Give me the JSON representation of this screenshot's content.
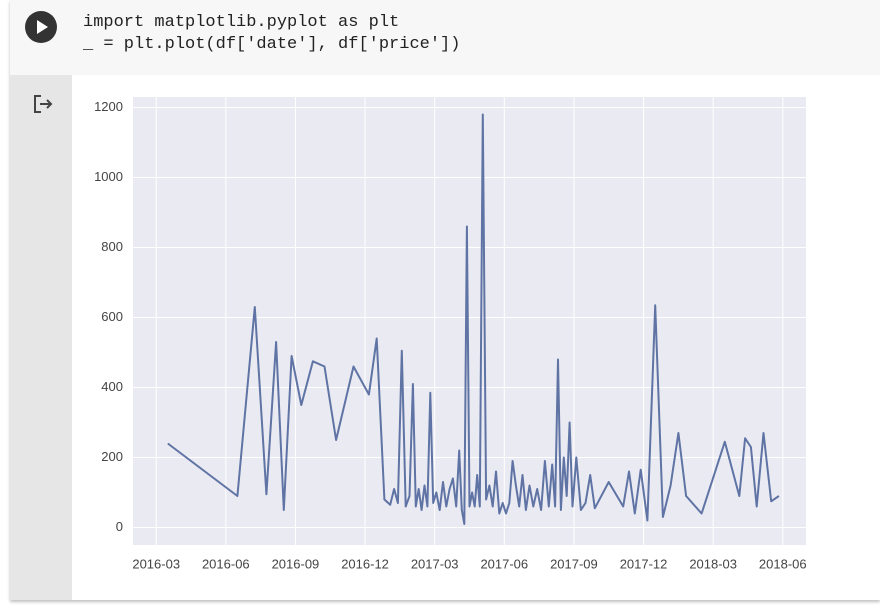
{
  "code": {
    "lines": [
      "import matplotlib.pyplot as plt",
      "_ = plt.plot(df['date'], df['price'])"
    ]
  },
  "chart_data": {
    "type": "line",
    "color": "#5f74a4",
    "grid": true,
    "x": [
      "2016-03",
      "2016-06",
      "2016-07",
      "2016-07",
      "2016-08",
      "2016-08",
      "2016-08",
      "2016-09",
      "2016-09",
      "2016-10",
      "2016-10",
      "2016-11",
      "2016-12",
      "2016-12",
      "2016-12",
      "2017-01",
      "2017-01",
      "2017-01",
      "2017-01",
      "2017-01",
      "2017-01",
      "2017-02",
      "2017-02",
      "2017-02",
      "2017-02",
      "2017-02",
      "2017-02",
      "2017-02",
      "2017-02",
      "2017-03",
      "2017-03",
      "2017-03",
      "2017-03",
      "2017-03",
      "2017-03",
      "2017-03",
      "2017-04",
      "2017-04",
      "2017-04",
      "2017-04",
      "2017-04",
      "2017-04",
      "2017-04",
      "2017-04",
      "2017-04",
      "2017-05",
      "2017-05",
      "2017-05",
      "2017-05",
      "2017-05",
      "2017-05",
      "2017-05",
      "2017-06",
      "2017-06",
      "2017-06",
      "2017-06",
      "2017-06",
      "2017-06",
      "2017-06",
      "2017-07",
      "2017-07",
      "2017-07",
      "2017-07",
      "2017-07",
      "2017-07",
      "2017-08",
      "2017-08",
      "2017-08",
      "2017-08",
      "2017-08",
      "2017-08",
      "2017-08",
      "2017-08",
      "2017-09",
      "2017-09",
      "2017-09",
      "2017-09",
      "2017-09",
      "2017-10",
      "2017-11",
      "2017-11",
      "2017-11",
      "2017-11",
      "2017-12",
      "2017-12",
      "2017-12",
      "2018-01",
      "2018-01",
      "2018-01",
      "2018-02",
      "2018-03",
      "2018-04",
      "2018-04",
      "2018-04",
      "2018-04",
      "2018-05",
      "2018-05",
      "2018-05"
    ],
    "values": [
      240,
      90,
      630,
      95,
      530,
      50,
      490,
      350,
      475,
      460,
      250,
      460,
      380,
      540,
      80,
      65,
      110,
      70,
      505,
      60,
      90,
      410,
      60,
      110,
      50,
      120,
      60,
      385,
      70,
      100,
      50,
      130,
      60,
      110,
      140,
      60,
      220,
      50,
      10,
      860,
      60,
      100,
      60,
      150,
      60,
      1180,
      80,
      120,
      60,
      160,
      40,
      70,
      40,
      70,
      190,
      120,
      60,
      150,
      50,
      120,
      60,
      110,
      50,
      190,
      60,
      180,
      60,
      480,
      50,
      200,
      90,
      300,
      60,
      200,
      50,
      70,
      150,
      55,
      130,
      60,
      160,
      40,
      165,
      20,
      635,
      30,
      120,
      270,
      90,
      40,
      245,
      90,
      255,
      230,
      60,
      270,
      75,
      90
    ],
    "xlim": [
      "2016-02",
      "2018-07"
    ],
    "xticks": [
      "2016-03",
      "2016-06",
      "2016-09",
      "2016-12",
      "2017-03",
      "2017-06",
      "2017-09",
      "2017-12",
      "2018-03",
      "2018-06"
    ],
    "ylim": [
      -50,
      1230
    ],
    "yticks": [
      0,
      200,
      400,
      600,
      800,
      1000,
      1200
    ]
  }
}
